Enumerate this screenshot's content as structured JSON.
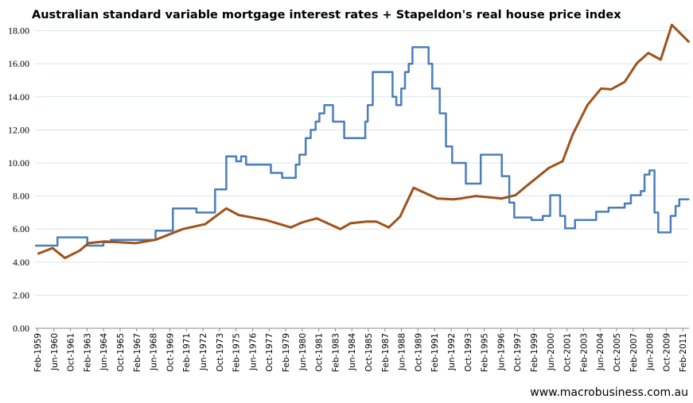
{
  "chart_data": {
    "type": "line",
    "title": "Australian standard variable mortgage interest rates + Stapeldon's real house price index",
    "xlabel": "",
    "ylabel": "",
    "ylim": [
      0,
      18
    ],
    "yticks": [
      "0.00",
      "2.00",
      "4.00",
      "6.00",
      "8.00",
      "10.00",
      "12.00",
      "14.00",
      "16.00",
      "18.00"
    ],
    "xticks": [
      "Feb-1959",
      "Jun-1960",
      "Oct-1961",
      "Feb-1963",
      "Jun-1964",
      "Oct-1965",
      "Feb-1967",
      "Jun-1968",
      "Oct-1969",
      "Feb-1971",
      "Jun-1972",
      "Oct-1973",
      "Feb-1975",
      "Jun-1976",
      "Oct-1977",
      "Feb-1979",
      "Jun-1980",
      "Oct-1981",
      "Feb-1983",
      "Jun-1984",
      "Oct-1985",
      "Feb-1987",
      "Jun-1988",
      "Oct-1989",
      "Feb-1991",
      "Jun-1992",
      "Oct-1993",
      "Feb-1995",
      "Jun-1996",
      "Oct-1997",
      "Feb-1999",
      "Jun-2000",
      "Oct-2001",
      "Feb-2003",
      "Jun-2004",
      "Oct-2005",
      "Feb-2007",
      "Jun-2008",
      "Oct-2009",
      "Feb-2011"
    ],
    "grid": true,
    "legend": "none",
    "watermark": "www.macrobusiness.com.au",
    "series": [
      {
        "name": "Standard variable mortgage rate",
        "color": "#4a7ebb",
        "step": true,
        "x": [
          1958.9,
          1960.7,
          1963.1,
          1964.4,
          1965.0,
          1968.6,
          1970.0,
          1971.9,
          1973.4,
          1974.3,
          1975.1,
          1975.5,
          1975.9,
          1977.9,
          1978.8,
          1979.9,
          1980.2,
          1980.7,
          1981.1,
          1981.5,
          1981.8,
          1982.2,
          1982.9,
          1983.8,
          1985.2,
          1985.5,
          1985.7,
          1986.1,
          1987.4,
          1987.7,
          1988.0,
          1988.4,
          1988.7,
          1989.0,
          1989.3,
          1989.9,
          1990.6,
          1990.9,
          1991.5,
          1992.0,
          1992.5,
          1993.6,
          1994.4,
          1994.8,
          1996.3,
          1996.5,
          1997.1,
          1997.5,
          1998.9,
          1999.8,
          2000.4,
          2000.8,
          2001.2,
          2001.6,
          2002.4,
          2003.7,
          2004.1,
          2005.1,
          2006.4,
          2006.9,
          2007.7,
          2008.0,
          2008.4,
          2008.8,
          2009.1,
          2009.6,
          2010.1,
          2010.5,
          2010.8,
          2011.6
        ],
        "values": [
          5.0,
          5.5,
          5.0,
          5.2,
          5.35,
          5.9,
          7.25,
          7.0,
          8.4,
          10.4,
          10.1,
          10.4,
          9.9,
          9.4,
          9.1,
          9.9,
          10.5,
          11.5,
          12.0,
          12.5,
          13.0,
          13.5,
          12.5,
          11.5,
          11.5,
          12.5,
          13.5,
          15.5,
          15.5,
          14.0,
          13.5,
          14.5,
          15.5,
          16.0,
          17.0,
          17.0,
          16.0,
          14.5,
          13.0,
          11.0,
          10.0,
          8.75,
          8.75,
          10.5,
          10.5,
          9.2,
          7.6,
          6.7,
          6.55,
          6.8,
          8.05,
          8.05,
          6.8,
          6.05,
          6.55,
          6.55,
          7.05,
          7.3,
          7.55,
          8.05,
          8.3,
          9.3,
          9.55,
          7.0,
          5.8,
          5.8,
          6.8,
          7.4,
          7.8,
          7.8
        ]
      },
      {
        "name": "Stapeldon's real house price index",
        "color": "#a0521a",
        "step": false,
        "x": [
          1959.1,
          1960.3,
          1961.3,
          1962.5,
          1963.2,
          1964.5,
          1967.0,
          1968.6,
          1970.8,
          1972.6,
          1974.3,
          1975.3,
          1977.5,
          1979.5,
          1980.4,
          1981.6,
          1983.5,
          1984.3,
          1985.6,
          1986.4,
          1987.4,
          1988.3,
          1989.4,
          1991.3,
          1992.6,
          1993.2,
          1994.4,
          1996.5,
          1997.6,
          1998.4,
          2000.3,
          2001.4,
          2002.2,
          2003.4,
          2004.5,
          2005.3,
          2006.4,
          2007.4,
          2008.3,
          2009.3,
          2010.2,
          2011.6
        ],
        "values": [
          4.5,
          4.85,
          4.25,
          4.7,
          5.15,
          5.25,
          5.15,
          5.35,
          6.0,
          6.3,
          7.25,
          6.85,
          6.55,
          6.1,
          6.4,
          6.65,
          6.0,
          6.35,
          6.45,
          6.45,
          6.1,
          6.75,
          8.5,
          7.85,
          7.8,
          7.85,
          8.0,
          7.85,
          8.05,
          8.55,
          9.7,
          10.1,
          11.7,
          13.5,
          14.5,
          14.45,
          14.9,
          16.05,
          16.65,
          16.25,
          18.35,
          17.3
        ]
      }
    ]
  }
}
